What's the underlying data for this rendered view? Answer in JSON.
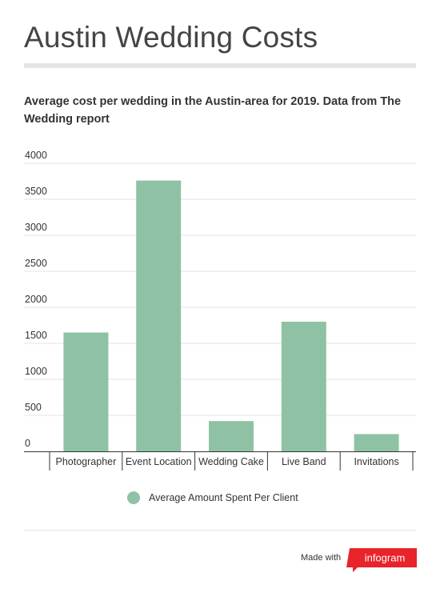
{
  "header": {
    "title": "Austin Wedding Costs",
    "subtitle": "Average cost per wedding in the Austin-area for 2019. Data from The Wedding report"
  },
  "footer": {
    "made_with": "Made with",
    "brand": "infogram",
    "brand_color": "#e8232a"
  },
  "chart_data": {
    "type": "bar",
    "categories": [
      "Photographer",
      "Event Location",
      "Wedding Cake",
      "Live Band",
      "Invitations"
    ],
    "series": [
      {
        "name": "Average Amount Spent Per Client",
        "values": [
          1650,
          3760,
          420,
          1800,
          240
        ],
        "color": "#8fc2a4"
      }
    ],
    "yticks": [
      0,
      500,
      1000,
      1500,
      2000,
      2500,
      3000,
      3500,
      4000
    ],
    "ylim": [
      0,
      4000
    ],
    "grid": true,
    "legend_position": "bottom"
  }
}
